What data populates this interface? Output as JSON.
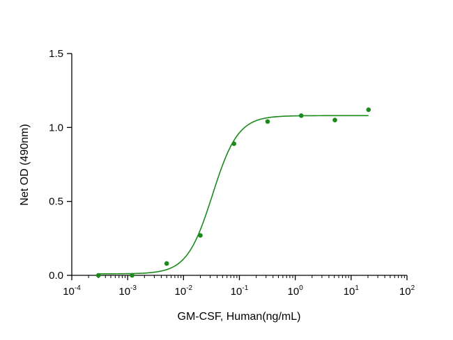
{
  "chart_data": {
    "type": "scatter",
    "xlabel": "GM-CSF, Human(ng/mL)",
    "ylabel": "Net OD (490nm)",
    "x_scale": "log",
    "xlim": [
      0.0001,
      100
    ],
    "ylim": [
      0,
      1.5
    ],
    "x_ticks": [
      {
        "base": "10",
        "exp": "-4"
      },
      {
        "base": "10",
        "exp": "-3"
      },
      {
        "base": "10",
        "exp": "-2"
      },
      {
        "base": "10",
        "exp": "-1"
      },
      {
        "base": "10",
        "exp": "0"
      },
      {
        "base": "10",
        "exp": "1"
      },
      {
        "base": "10",
        "exp": "2"
      }
    ],
    "y_ticks": [
      "0.0",
      "0.5",
      "1.0",
      "1.5"
    ],
    "grid": false,
    "color": "#1a8a1a",
    "points": [
      {
        "x": 0.0003,
        "y": 0.0
      },
      {
        "x": 0.0012,
        "y": 0.0
      },
      {
        "x": 0.005,
        "y": 0.08
      },
      {
        "x": 0.02,
        "y": 0.27
      },
      {
        "x": 0.08,
        "y": 0.89
      },
      {
        "x": 0.32,
        "y": 1.04
      },
      {
        "x": 1.28,
        "y": 1.08
      },
      {
        "x": 5.12,
        "y": 1.05
      },
      {
        "x": 20.48,
        "y": 1.12
      }
    ],
    "fit": {
      "model": "4PL",
      "bottom": 0.01,
      "top": 1.08,
      "ec50": 0.033,
      "hill": 1.9,
      "x_range": [
        0.0003,
        20.48
      ]
    }
  }
}
